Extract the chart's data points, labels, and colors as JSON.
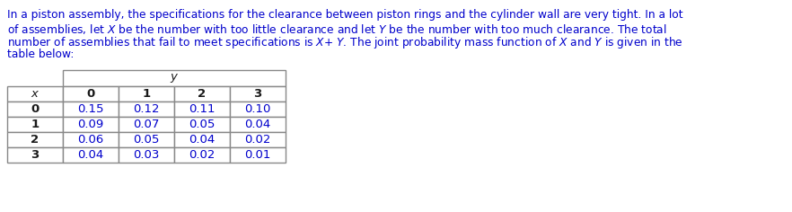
{
  "para_lines": [
    "In a piston assembly, the specifications for the clearance between piston rings and the cylinder wall are very tight. In a lot",
    "of assemblies, let $X$ be the number with too little clearance and let $Y$ be the number with too much clearance. The total",
    "number of assemblies that fail to meet specifications is $X$+ $Y$. The joint probability mass function of $X$ and $Y$ is given in the",
    "table below:"
  ],
  "col_headers": [
    "x",
    "0",
    "1",
    "2",
    "3"
  ],
  "y_label": "y",
  "row_labels": [
    "0",
    "1",
    "2",
    "3"
  ],
  "table_data": [
    [
      0.15,
      0.12,
      0.11,
      0.1
    ],
    [
      0.09,
      0.07,
      0.05,
      0.04
    ],
    [
      0.06,
      0.05,
      0.04,
      0.02
    ],
    [
      0.04,
      0.03,
      0.02,
      0.01
    ]
  ],
  "text_color": "#0000cc",
  "header_dark_color": "#1a1a1a",
  "data_color": "#0000cc",
  "bg_color": "#ffffff",
  "border_color": "#888888",
  "para_font_size": 8.8,
  "table_font_size": 9.0,
  "fig_width": 8.82,
  "fig_height": 2.36,
  "dpi": 100
}
